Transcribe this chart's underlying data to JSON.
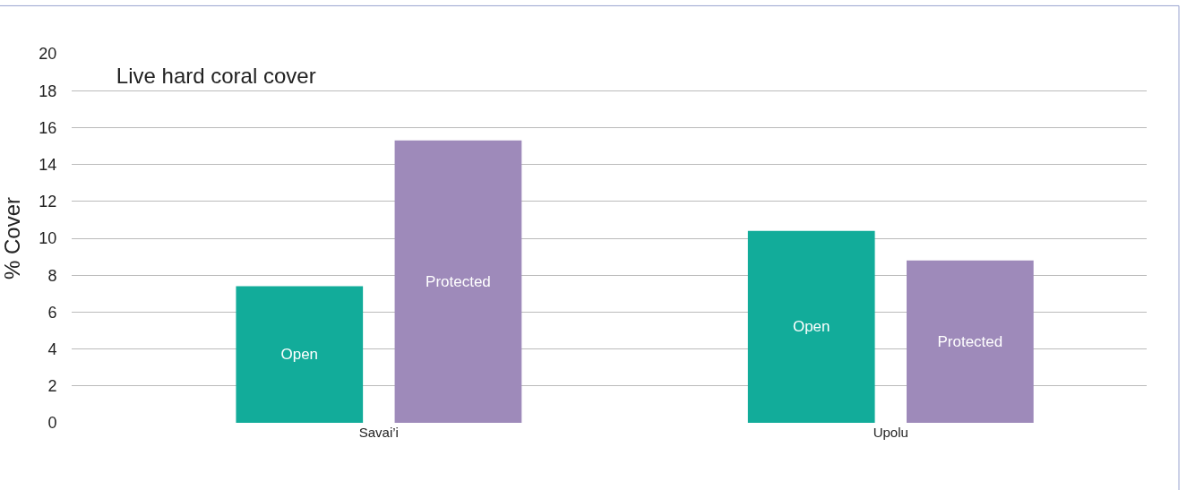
{
  "chart_data": {
    "type": "bar",
    "title": "Live hard coral cover",
    "ylabel": "% Cover",
    "categories": [
      "Savai’i",
      "Upolu"
    ],
    "series": [
      {
        "name": "Open",
        "color": "#12ac9a",
        "values": [
          7.4,
          10.4
        ]
      },
      {
        "name": "Protected",
        "color": "#9e8aba",
        "values": [
          15.3,
          8.8
        ]
      }
    ],
    "ylim": [
      0,
      20
    ],
    "yticks": [
      0,
      2,
      4,
      6,
      8,
      10,
      12,
      14,
      16,
      18,
      20
    ],
    "grid": "y",
    "legend": false
  }
}
